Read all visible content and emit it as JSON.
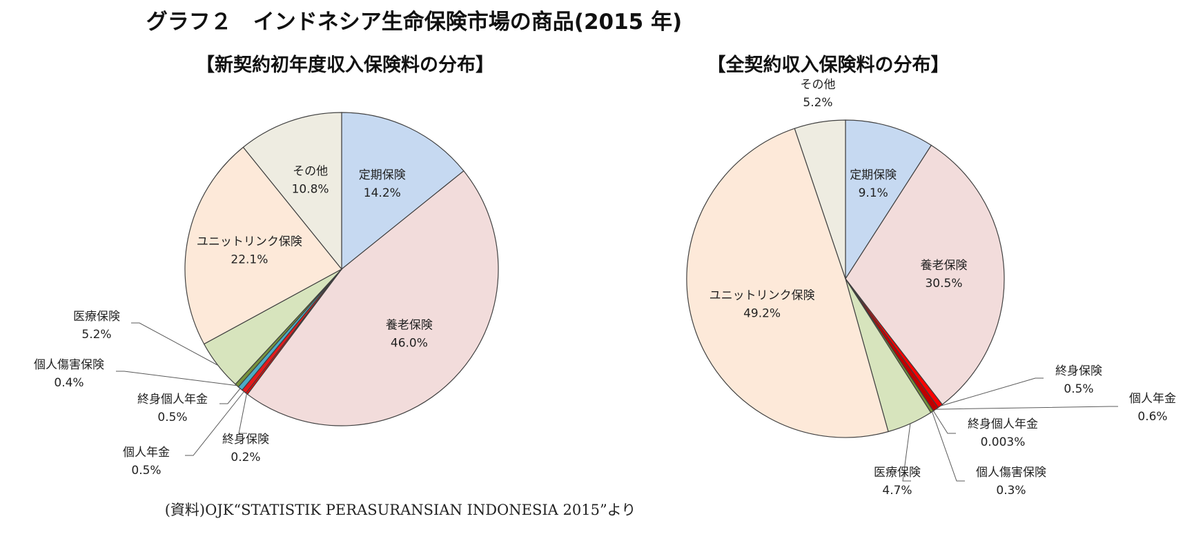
{
  "title": "グラフ２　インドネシア生命保険市場の商品(2015 年)",
  "source": "(資料)OJK“STATISTIK PERASURANSIAN INDONESIA 2015”より",
  "chart_data": [
    {
      "type": "pie",
      "title": "【新契約初年度収入保険料の分布】",
      "slices": [
        {
          "name": "定期保険",
          "label": "14.2%",
          "value": 14.2,
          "color": "#c6d9f1"
        },
        {
          "name": "養老保険",
          "label": "46.0%",
          "value": 46.0,
          "color": "#f2dcdb"
        },
        {
          "name": "終身保険",
          "label": "0.2%",
          "value": 0.2,
          "color": "#ff0000"
        },
        {
          "name": "個人年金",
          "label": "0.5%",
          "value": 0.5,
          "color": "#e41a1c"
        },
        {
          "name": "終身個人年金",
          "label": "0.5%",
          "value": 0.5,
          "color": "#4bacc6"
        },
        {
          "name": "個人傷害保険",
          "label": "0.4%",
          "value": 0.4,
          "color": "#77933c"
        },
        {
          "name": "医療保険",
          "label": "5.2%",
          "value": 5.2,
          "color": "#d7e4bd"
        },
        {
          "name": "ユニットリンク保険",
          "label": "22.1%",
          "value": 22.1,
          "color": "#fde9d9"
        },
        {
          "name": "その他",
          "label": "10.8%",
          "value": 10.8,
          "color": "#eeece1"
        }
      ]
    },
    {
      "type": "pie",
      "title": "【全契約収入保険料の分布】",
      "slices": [
        {
          "name": "定期保険",
          "label": "9.1%",
          "value": 9.1,
          "color": "#c6d9f1"
        },
        {
          "name": "養老保険",
          "label": "30.5%",
          "value": 30.5,
          "color": "#f2dcdb"
        },
        {
          "name": "終身保険",
          "label": "0.5%",
          "value": 0.5,
          "color": "#ff0000"
        },
        {
          "name": "個人年金",
          "label": "0.6%",
          "value": 0.6,
          "color": "#c00000"
        },
        {
          "name": "終身個人年金",
          "label": "0.003%",
          "value": 0.003,
          "color": "#4bacc6"
        },
        {
          "name": "個人傷害保険",
          "label": "0.3%",
          "value": 0.3,
          "color": "#77933c"
        },
        {
          "name": "医療保険",
          "label": "4.7%",
          "value": 4.7,
          "color": "#d7e4bd"
        },
        {
          "name": "ユニットリンク保険",
          "label": "49.2%",
          "value": 49.2,
          "color": "#fde9d9"
        },
        {
          "name": "その他",
          "label": "5.2%",
          "value": 5.2,
          "color": "#eeece1"
        }
      ]
    }
  ]
}
